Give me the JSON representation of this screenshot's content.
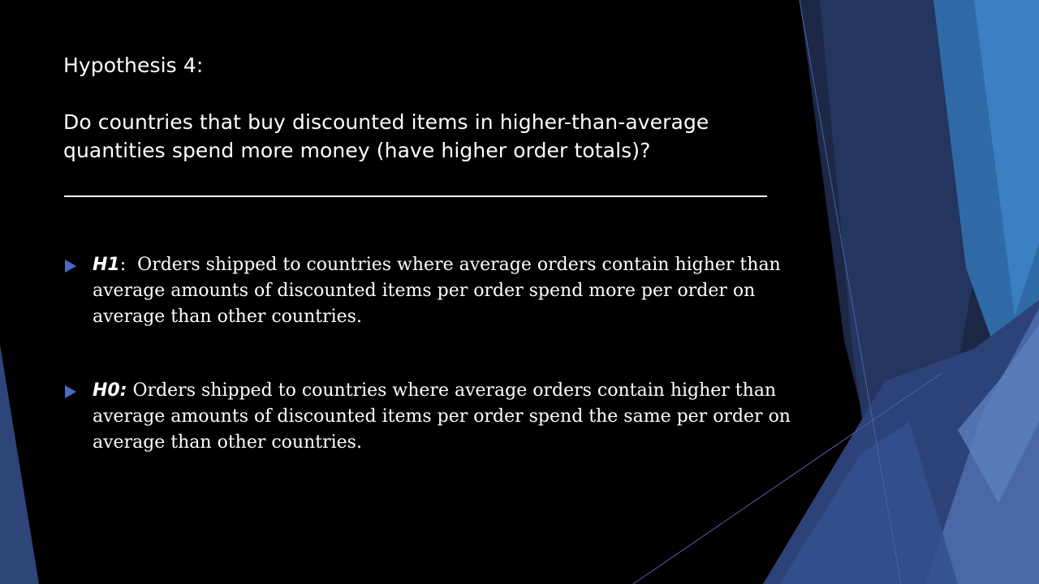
{
  "slide": {
    "title_lines": [
      "Hypothesis 4:",
      "Do countries that buy discounted items in higher-than-average",
      "quantities spend more money (have higher order totals)?"
    ],
    "bullets": [
      {
        "label": "H1",
        "separator": ":",
        "lines": [
          "Orders shipped to countries where average orders contain higher than",
          "average amounts of discounted items per order spend more per order on",
          "average than other countries."
        ]
      },
      {
        "label": "H0:",
        "separator": "",
        "lines": [
          "Orders shipped to countries where average orders contain higher than",
          "average amounts of discounted items per order spend the same per order on",
          "average than other countries."
        ]
      }
    ]
  },
  "colors": {
    "background": "#000000",
    "text": "#ffffff",
    "bullet_marker": "#4a6cc4",
    "accent_dark": "#1f2c4e",
    "accent_mid": "#34508e",
    "accent_light": "#3f7ec0"
  },
  "icons": {
    "bullet_marker": "triangle-bullet-icon"
  }
}
